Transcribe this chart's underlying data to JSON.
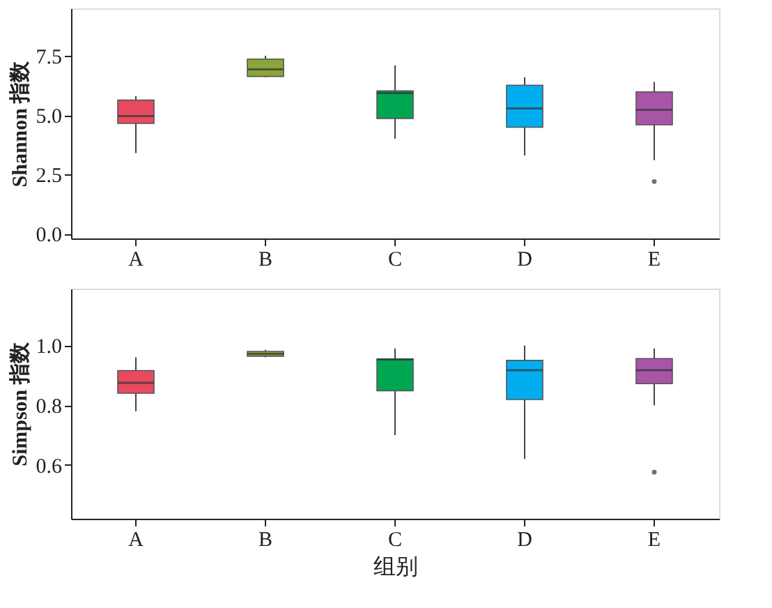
{
  "chart_data": [
    {
      "type": "box",
      "ylabel": "Shannon 指数",
      "categories": [
        "A",
        "B",
        "C",
        "D",
        "E"
      ],
      "colors": [
        "#e84a5f",
        "#8aa63a",
        "#00a651",
        "#00aeef",
        "#a855a8"
      ],
      "ylim": [
        -0.2,
        9.5
      ],
      "yticks": [
        {
          "value": 0,
          "label": "0.0"
        },
        2.5,
        {
          "value": 5,
          "label": "5.0"
        },
        7.5
      ],
      "grid": false,
      "legend": false,
      "boxes": [
        {
          "low": 3.4,
          "q1": 4.65,
          "median": 4.96,
          "q3": 5.63,
          "high": 5.8
        },
        {
          "low": 6.6,
          "q1": 6.63,
          "median": 6.93,
          "q3": 7.36,
          "high": 7.5
        },
        {
          "low": 4.0,
          "q1": 4.86,
          "median": 5.93,
          "q3": 6.02,
          "high": 7.1
        },
        {
          "low": 3.3,
          "q1": 4.49,
          "median": 5.28,
          "q3": 6.26,
          "high": 6.6
        },
        {
          "low": 3.1,
          "q1": 4.59,
          "median": 5.22,
          "q3": 5.98,
          "high": 6.4,
          "outliers": [
            2.2
          ]
        }
      ]
    },
    {
      "type": "box",
      "ylabel": "Simpson 指数",
      "xlabel": "组别",
      "categories": [
        "A",
        "B",
        "C",
        "D",
        "E"
      ],
      "colors": [
        "#e84a5f",
        "#8aa63a",
        "#00a651",
        "#00aeef",
        "#a855a8"
      ],
      "ylim": [
        0.42,
        1.19
      ],
      "yticks": [
        0.6,
        0.8,
        {
          "value": 1,
          "label": "1.0"
        }
      ],
      "grid": false,
      "legend": false,
      "boxes": [
        {
          "low": 0.78,
          "q1": 0.84,
          "median": 0.875,
          "q3": 0.916,
          "high": 0.96
        },
        {
          "low": 0.96,
          "q1": 0.964,
          "median": 0.972,
          "q3": 0.98,
          "high": 0.985
        },
        {
          "low": 0.7,
          "q1": 0.848,
          "median": 0.953,
          "q3": 0.955,
          "high": 0.99
        },
        {
          "low": 0.62,
          "q1": 0.819,
          "median": 0.917,
          "q3": 0.95,
          "high": 1.0
        },
        {
          "low": 0.8,
          "q1": 0.872,
          "median": 0.917,
          "q3": 0.956,
          "high": 0.99,
          "outliers": [
            0.576
          ]
        }
      ]
    }
  ]
}
